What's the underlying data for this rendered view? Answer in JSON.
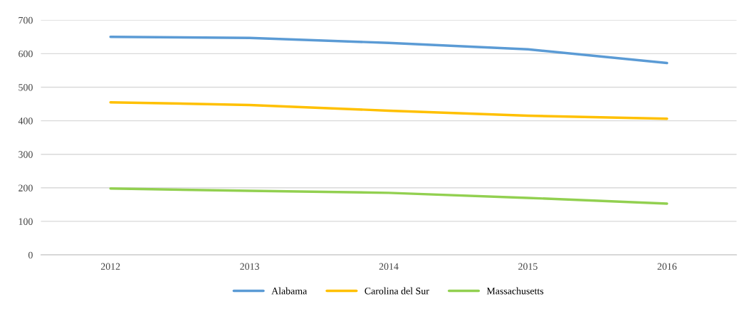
{
  "chart_data": {
    "type": "line",
    "categories": [
      "2012",
      "2013",
      "2014",
      "2015",
      "2016"
    ],
    "series": [
      {
        "name": "Alabama",
        "color": "#5b9bd5",
        "values": [
          650,
          647,
          632,
          613,
          572
        ]
      },
      {
        "name": "Carolina del Sur",
        "color": "#ffc000",
        "values": [
          455,
          447,
          430,
          415,
          406
        ]
      },
      {
        "name": "Massachusetts",
        "color": "#92d050",
        "values": [
          198,
          191,
          185,
          170,
          153
        ]
      }
    ],
    "ylim": [
      0,
      700
    ],
    "yticks": [
      0,
      100,
      200,
      300,
      400,
      500,
      600,
      700
    ],
    "grid": "y",
    "legend": "bottom",
    "line_style": "solid",
    "marker": "none"
  }
}
